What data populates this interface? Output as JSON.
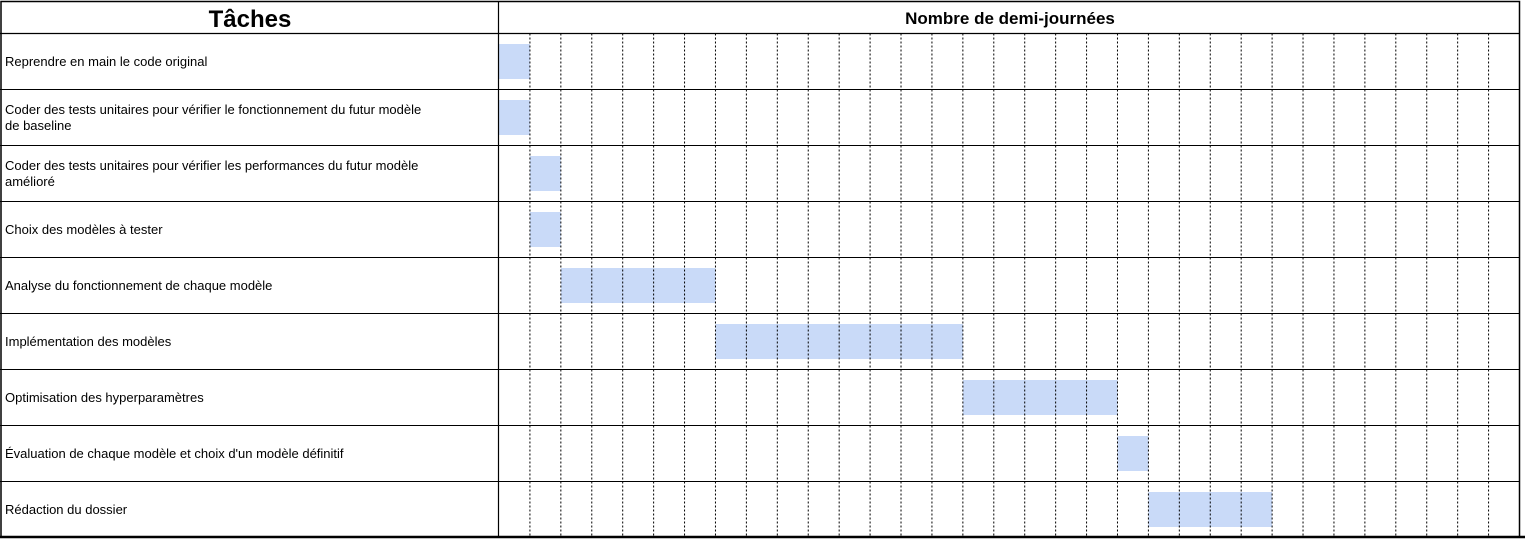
{
  "chart_data": {
    "type": "bar",
    "title": "",
    "columns": {
      "tasks_header": "Tâches",
      "time_header": "Nombre de demi-journées"
    },
    "unit": "demi-journée",
    "xlim": [
      0,
      33
    ],
    "bar_color": "#c9daf8",
    "tasks": [
      {
        "label": "Reprendre en main le code original",
        "start": 0,
        "duration": 1
      },
      {
        "label": "Coder des tests unitaires pour vérifier le fonctionnement du futur modèle de baseline",
        "start": 0,
        "duration": 1
      },
      {
        "label": "Coder des tests unitaires pour vérifier les performances du futur modèle amélioré",
        "start": 1,
        "duration": 1
      },
      {
        "label": "Choix des modèles à tester",
        "start": 1,
        "duration": 1
      },
      {
        "label": "Analyse du fonctionnement de chaque modèle",
        "start": 2,
        "duration": 5
      },
      {
        "label": "Implémentation des modèles",
        "start": 7,
        "duration": 8
      },
      {
        "label": "Optimisation des hyperparamètres",
        "start": 15,
        "duration": 5
      },
      {
        "label": "Évaluation de chaque modèle et choix d'un modèle définitif",
        "start": 20,
        "duration": 1
      },
      {
        "label": "Rédaction du dossier",
        "start": 21,
        "duration": 4
      }
    ]
  }
}
